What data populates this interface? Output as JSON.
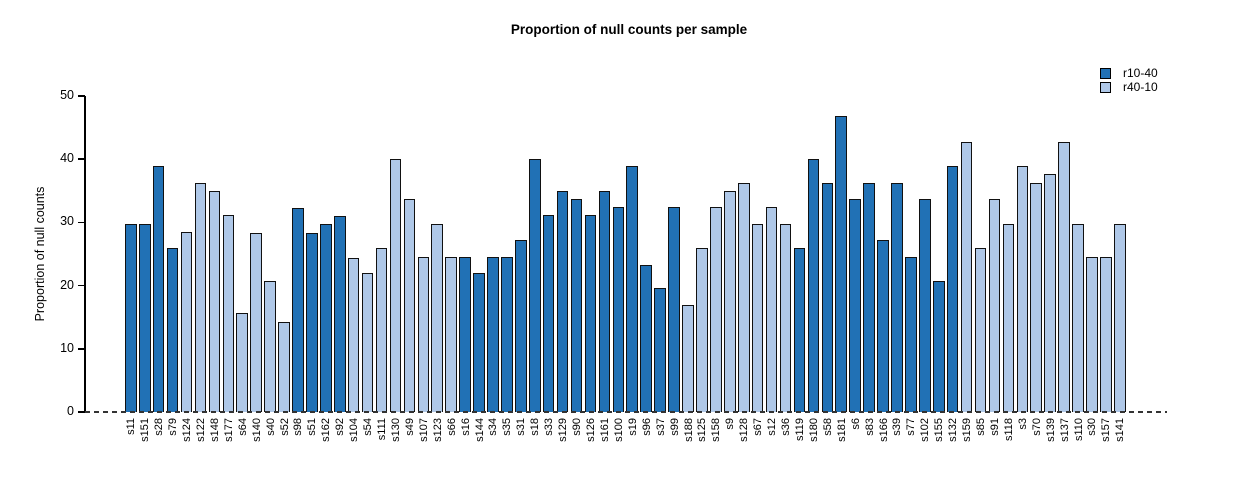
{
  "chart_data": {
    "type": "bar",
    "title": "Proportion of null counts per sample",
    "ylabel": "Proportion of null counts",
    "xlabel": "",
    "ylim": [
      0,
      50
    ],
    "yticks": [
      0,
      10,
      20,
      30,
      40,
      50
    ],
    "grid": false,
    "zero_line_style": "dashed",
    "legend": {
      "position": "top-right",
      "items": [
        {
          "name": "r10-40",
          "color": "#2171B5"
        },
        {
          "name": "r40-10",
          "color": "#AFC8E8"
        }
      ]
    },
    "categories": [
      "s11",
      "s151",
      "s28",
      "s79",
      "s124",
      "s122",
      "s148",
      "s177",
      "s64",
      "s140",
      "s40",
      "s52",
      "s98",
      "s51",
      "s162",
      "s92",
      "s104",
      "s54",
      "s111",
      "s130",
      "s49",
      "s107",
      "s123",
      "s66",
      "s16",
      "s144",
      "s34",
      "s35",
      "s31",
      "s18",
      "s33",
      "s129",
      "s90",
      "s126",
      "s161",
      "s100",
      "s19",
      "s96",
      "s37",
      "s99",
      "s188",
      "s125",
      "s158",
      "s9",
      "s128",
      "s67",
      "s12",
      "s36",
      "s119",
      "s180",
      "s58",
      "s181",
      "s6",
      "s83",
      "s166",
      "s39",
      "s77",
      "s102",
      "s155",
      "s132",
      "s159",
      "s85",
      "s91",
      "s118",
      "s3",
      "s70",
      "s139",
      "s137",
      "s110",
      "s30",
      "s157",
      "s141"
    ],
    "values": [
      29.8,
      29.8,
      38.9,
      25.9,
      28.5,
      36.3,
      34.9,
      31.2,
      15.6,
      28.4,
      20.8,
      14.3,
      32.3,
      28.3,
      29.7,
      31.0,
      24.4,
      22.0,
      26.0,
      40.1,
      33.7,
      24.5,
      29.8,
      24.5,
      24.5,
      22.0,
      24.5,
      24.5,
      27.2,
      40.1,
      31.2,
      35.0,
      33.7,
      31.2,
      35.0,
      32.4,
      38.9,
      23.3,
      19.6,
      32.4,
      16.9,
      26.0,
      32.4,
      35.0,
      36.3,
      29.8,
      32.4,
      29.8,
      26.0,
      40.1,
      36.3,
      46.8,
      33.7,
      36.3,
      27.2,
      36.3,
      24.5,
      33.7,
      20.8,
      38.9,
      42.8,
      26.0,
      33.7,
      29.8,
      39.0,
      36.3,
      37.6,
      42.8,
      29.8,
      24.5,
      24.5,
      29.8
    ],
    "series_of_bar": [
      "r10-40",
      "r10-40",
      "r10-40",
      "r10-40",
      "r40-10",
      "r40-10",
      "r40-10",
      "r40-10",
      "r40-10",
      "r40-10",
      "r40-10",
      "r40-10",
      "r10-40",
      "r10-40",
      "r10-40",
      "r10-40",
      "r40-10",
      "r40-10",
      "r40-10",
      "r40-10",
      "r40-10",
      "r40-10",
      "r40-10",
      "r40-10",
      "r10-40",
      "r10-40",
      "r10-40",
      "r10-40",
      "r10-40",
      "r10-40",
      "r10-40",
      "r10-40",
      "r10-40",
      "r10-40",
      "r10-40",
      "r10-40",
      "r10-40",
      "r10-40",
      "r10-40",
      "r10-40",
      "r40-10",
      "r40-10",
      "r40-10",
      "r40-10",
      "r40-10",
      "r40-10",
      "r40-10",
      "r40-10",
      "r10-40",
      "r10-40",
      "r10-40",
      "r10-40",
      "r10-40",
      "r10-40",
      "r10-40",
      "r10-40",
      "r10-40",
      "r10-40",
      "r10-40",
      "r10-40",
      "r40-10",
      "r40-10",
      "r40-10",
      "r40-10",
      "r40-10",
      "r40-10",
      "r40-10",
      "r40-10",
      "r40-10",
      "r40-10",
      "r40-10",
      "r40-10"
    ]
  }
}
